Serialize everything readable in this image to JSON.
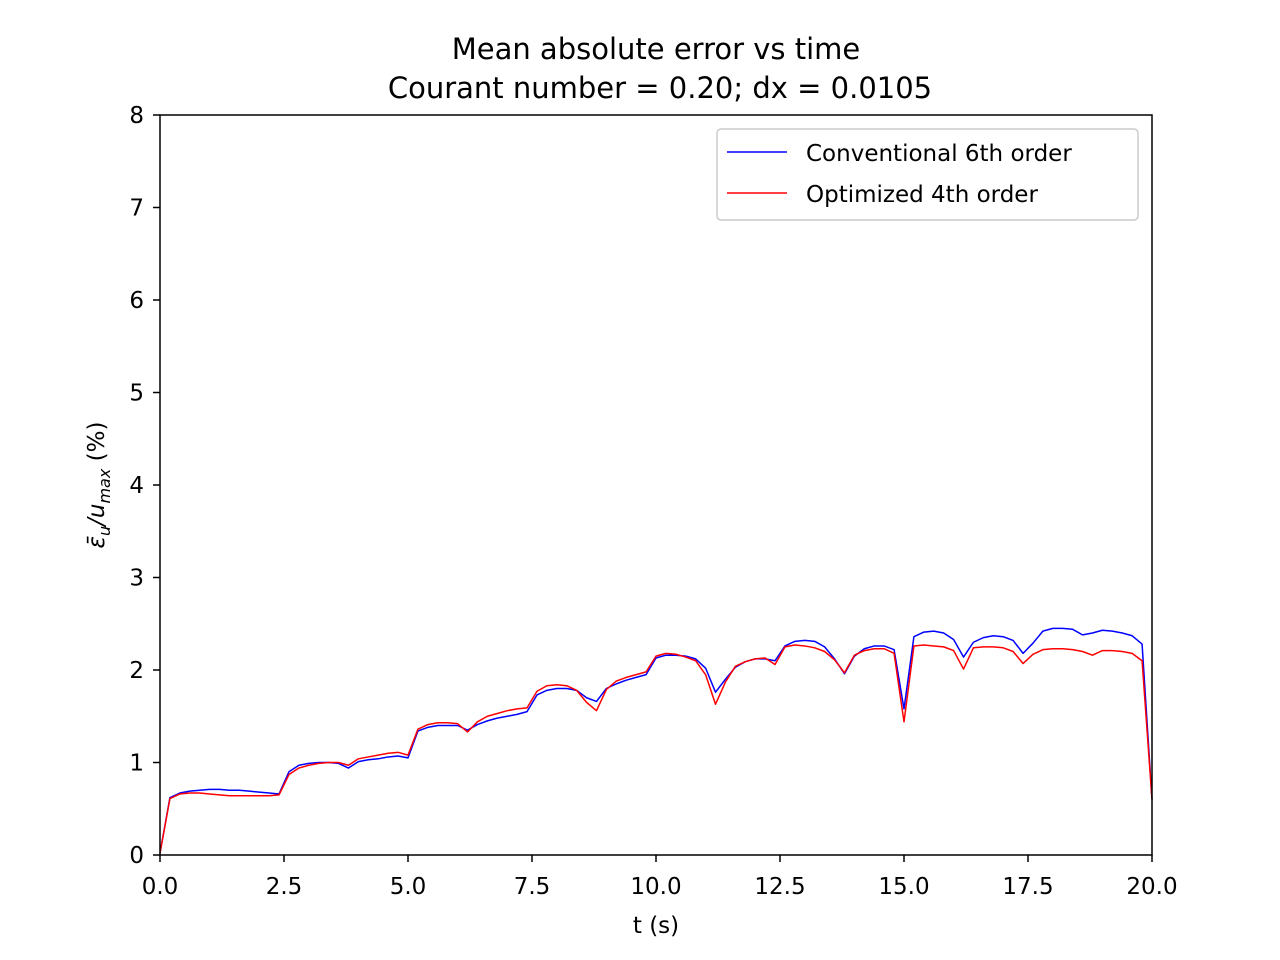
{
  "chart_data": {
    "type": "line",
    "title": "Mean absolute error vs time",
    "subtitle": "Courant number = 0.20; dx = 0.0105",
    "xlabel": "t (s)",
    "ylabel": "ε̄u/umax (%)",
    "ylabel_parts": {
      "eps": "ε̄",
      "eps_sub": "u",
      "slash": "/u",
      "u_sub": "max",
      "unit": " (%)"
    },
    "xlim": [
      0,
      20
    ],
    "ylim": [
      0,
      8
    ],
    "xticks": [
      0,
      2.5,
      5,
      7.5,
      10,
      12.5,
      15,
      17.5,
      20
    ],
    "xtick_labels": [
      "0.0",
      "2.5",
      "5.0",
      "7.5",
      "10.0",
      "12.5",
      "15.0",
      "17.5",
      "20.0"
    ],
    "yticks": [
      0,
      1,
      2,
      3,
      4,
      5,
      6,
      7,
      8
    ],
    "ytick_labels": [
      "0",
      "1",
      "2",
      "3",
      "4",
      "5",
      "6",
      "7",
      "8"
    ],
    "grid": false,
    "legend_position": "top-right",
    "series": [
      {
        "name": "Conventional 6th order",
        "color": "#0000ff",
        "x": [
          0,
          0.2,
          0.4,
          0.6,
          0.8,
          1.0,
          1.2,
          1.4,
          1.6,
          1.8,
          2.0,
          2.2,
          2.4,
          2.6,
          2.8,
          3.0,
          3.2,
          3.4,
          3.6,
          3.8,
          4.0,
          4.2,
          4.4,
          4.6,
          4.8,
          5.0,
          5.2,
          5.4,
          5.6,
          5.8,
          6.0,
          6.2,
          6.4,
          6.6,
          6.8,
          7.0,
          7.2,
          7.4,
          7.6,
          7.8,
          8.0,
          8.2,
          8.4,
          8.6,
          8.8,
          9.0,
          9.2,
          9.4,
          9.6,
          9.8,
          10.0,
          10.2,
          10.4,
          10.6,
          10.8,
          11.0,
          11.2,
          11.4,
          11.6,
          11.8,
          12.0,
          12.2,
          12.4,
          12.6,
          12.8,
          13.0,
          13.2,
          13.4,
          13.6,
          13.8,
          14.0,
          14.2,
          14.4,
          14.6,
          14.8,
          15.0,
          15.2,
          15.4,
          15.6,
          15.8,
          16.0,
          16.2,
          16.4,
          16.6,
          16.8,
          17.0,
          17.2,
          17.4,
          17.6,
          17.8,
          18.0,
          18.2,
          18.4,
          18.6,
          18.8,
          19.0,
          19.2,
          19.4,
          19.6,
          19.8,
          20.0
        ],
        "y": [
          0.02,
          0.62,
          0.67,
          0.69,
          0.7,
          0.71,
          0.71,
          0.7,
          0.7,
          0.69,
          0.68,
          0.67,
          0.66,
          0.9,
          0.97,
          0.99,
          1.0,
          1.0,
          0.99,
          0.94,
          1.01,
          1.03,
          1.04,
          1.06,
          1.07,
          1.05,
          1.34,
          1.38,
          1.4,
          1.4,
          1.4,
          1.35,
          1.41,
          1.45,
          1.48,
          1.5,
          1.52,
          1.55,
          1.73,
          1.78,
          1.8,
          1.8,
          1.78,
          1.7,
          1.66,
          1.8,
          1.85,
          1.89,
          1.92,
          1.95,
          2.13,
          2.16,
          2.16,
          2.15,
          2.12,
          2.02,
          1.76,
          1.9,
          2.03,
          2.09,
          2.12,
          2.12,
          2.1,
          2.26,
          2.31,
          2.32,
          2.31,
          2.25,
          2.12,
          1.96,
          2.15,
          2.23,
          2.26,
          2.26,
          2.22,
          1.58,
          2.36,
          2.41,
          2.42,
          2.4,
          2.33,
          2.14,
          2.3,
          2.35,
          2.37,
          2.36,
          2.32,
          2.18,
          2.29,
          2.42,
          2.45,
          2.45,
          2.44,
          2.38,
          2.4,
          2.43,
          2.42,
          2.4,
          2.37,
          2.28,
          0.6
        ]
      },
      {
        "name": "Optimized 4th order",
        "color": "#ff0000",
        "x": [
          0,
          0.2,
          0.4,
          0.6,
          0.8,
          1.0,
          1.2,
          1.4,
          1.6,
          1.8,
          2.0,
          2.2,
          2.4,
          2.6,
          2.8,
          3.0,
          3.2,
          3.4,
          3.6,
          3.8,
          4.0,
          4.2,
          4.4,
          4.6,
          4.8,
          5.0,
          5.2,
          5.4,
          5.6,
          5.8,
          6.0,
          6.2,
          6.4,
          6.6,
          6.8,
          7.0,
          7.2,
          7.4,
          7.6,
          7.8,
          8.0,
          8.2,
          8.4,
          8.6,
          8.8,
          9.0,
          9.2,
          9.4,
          9.6,
          9.8,
          10.0,
          10.2,
          10.4,
          10.6,
          10.8,
          11.0,
          11.2,
          11.4,
          11.6,
          11.8,
          12.0,
          12.2,
          12.4,
          12.6,
          12.8,
          13.0,
          13.2,
          13.4,
          13.6,
          13.8,
          14.0,
          14.2,
          14.4,
          14.6,
          14.8,
          15.0,
          15.2,
          15.4,
          15.6,
          15.8,
          16.0,
          16.2,
          16.4,
          16.6,
          16.8,
          17.0,
          17.2,
          17.4,
          17.6,
          17.8,
          18.0,
          18.2,
          18.4,
          18.6,
          18.8,
          19.0,
          19.2,
          19.4,
          19.6,
          19.8,
          20.0
        ],
        "y": [
          0.02,
          0.61,
          0.66,
          0.67,
          0.67,
          0.66,
          0.65,
          0.64,
          0.64,
          0.64,
          0.64,
          0.64,
          0.65,
          0.87,
          0.94,
          0.97,
          0.99,
          1.0,
          1.0,
          0.97,
          1.04,
          1.06,
          1.08,
          1.1,
          1.11,
          1.08,
          1.36,
          1.41,
          1.43,
          1.43,
          1.42,
          1.33,
          1.44,
          1.5,
          1.53,
          1.56,
          1.58,
          1.59,
          1.77,
          1.83,
          1.84,
          1.83,
          1.78,
          1.65,
          1.56,
          1.79,
          1.88,
          1.92,
          1.95,
          1.98,
          2.15,
          2.18,
          2.17,
          2.14,
          2.1,
          1.95,
          1.63,
          1.87,
          2.04,
          2.09,
          2.12,
          2.13,
          2.06,
          2.25,
          2.27,
          2.26,
          2.24,
          2.2,
          2.11,
          1.97,
          2.16,
          2.21,
          2.23,
          2.23,
          2.18,
          1.44,
          2.26,
          2.27,
          2.26,
          2.25,
          2.21,
          2.01,
          2.24,
          2.25,
          2.25,
          2.24,
          2.2,
          2.07,
          2.17,
          2.22,
          2.23,
          2.23,
          2.22,
          2.2,
          2.16,
          2.21,
          2.21,
          2.2,
          2.18,
          2.1,
          0.6
        ]
      }
    ]
  }
}
